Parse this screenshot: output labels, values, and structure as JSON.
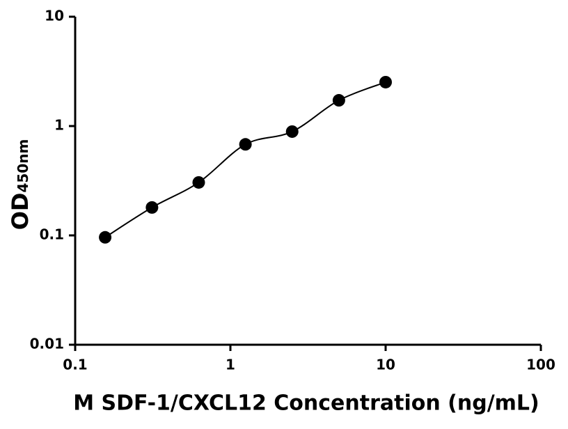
{
  "chart_data": {
    "type": "scatter",
    "xlabel": "M SDF-1/CXCL12 Concentration (ng/mL)",
    "ylabel": "OD",
    "ylabel_subscript": "450nm",
    "x": [
      0.156,
      0.3125,
      0.625,
      1.25,
      2.5,
      5,
      10
    ],
    "series": [
      {
        "color": "#000000",
        "values": [
          0.096,
          0.18,
          0.305,
          0.68,
          0.89,
          1.72,
          2.52
        ]
      }
    ],
    "xlim": [
      0.1,
      100
    ],
    "ylim": [
      0.01,
      10
    ],
    "xticks": [
      0.1,
      1,
      10,
      100
    ],
    "yticks": [
      0.01,
      0.1,
      1,
      10
    ],
    "log_x": true,
    "log_y": true,
    "fit_curve": true
  }
}
